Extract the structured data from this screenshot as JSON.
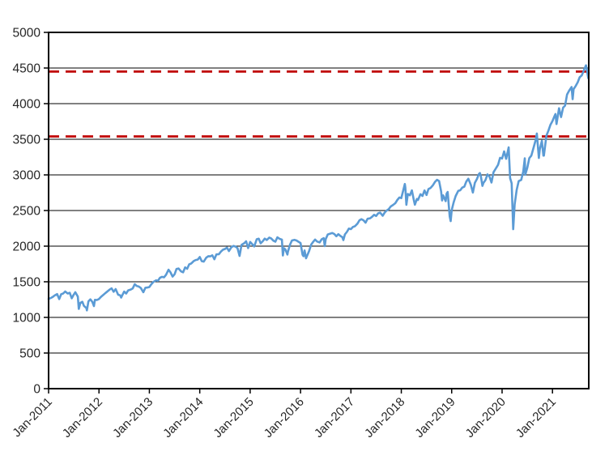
{
  "chart_data": {
    "type": "line",
    "title": "",
    "background": "#ffffff",
    "grid": true,
    "legend": "none",
    "colors": {
      "series": "#5B9BD5",
      "reference": "#C00000",
      "gridline": "#000000",
      "border": "#000000",
      "tick_text": "#262626"
    },
    "y_axis": {
      "min": 0,
      "max": 5000,
      "step": 500,
      "ticks": [
        0,
        500,
        1000,
        1500,
        2000,
        2500,
        3000,
        3500,
        4000,
        4500,
        5000
      ]
    },
    "x_axis": {
      "min": 2011.0,
      "max": 2021.72,
      "label_rotation": -45,
      "ticks": [
        {
          "t": 2011,
          "label": "Jan-2011"
        },
        {
          "t": 2012,
          "label": "Jan-2012"
        },
        {
          "t": 2013,
          "label": "Jan-2013"
        },
        {
          "t": 2014,
          "label": "Jan-2014"
        },
        {
          "t": 2015,
          "label": "Jan-2015"
        },
        {
          "t": 2016,
          "label": "Jan-2016"
        },
        {
          "t": 2017,
          "label": "Jan-2017"
        },
        {
          "t": 2018,
          "label": "Jan-2018"
        },
        {
          "t": 2019,
          "label": "Jan-2019"
        },
        {
          "t": 2020,
          "label": "Jan-2020"
        },
        {
          "t": 2021,
          "label": "Jan-2021"
        }
      ]
    },
    "reference_lines": [
      {
        "value": 4450,
        "style": "dashed"
      },
      {
        "value": 3540,
        "style": "dashed"
      }
    ],
    "series": [
      {
        "points": [
          [
            2011.0,
            1258
          ],
          [
            2011.04,
            1272
          ],
          [
            2011.08,
            1286
          ],
          [
            2011.12,
            1308
          ],
          [
            2011.17,
            1327
          ],
          [
            2011.21,
            1257
          ],
          [
            2011.25,
            1326
          ],
          [
            2011.29,
            1335
          ],
          [
            2011.33,
            1364
          ],
          [
            2011.38,
            1335
          ],
          [
            2011.42,
            1345
          ],
          [
            2011.46,
            1268
          ],
          [
            2011.5,
            1321
          ],
          [
            2011.53,
            1353
          ],
          [
            2011.58,
            1292
          ],
          [
            2011.6,
            1119
          ],
          [
            2011.63,
            1205
          ],
          [
            2011.67,
            1219
          ],
          [
            2011.7,
            1162
          ],
          [
            2011.75,
            1131
          ],
          [
            2011.76,
            1099
          ],
          [
            2011.79,
            1225
          ],
          [
            2011.83,
            1253
          ],
          [
            2011.87,
            1216
          ],
          [
            2011.9,
            1159
          ],
          [
            2011.92,
            1247
          ],
          [
            2011.96,
            1244
          ],
          [
            2012.0,
            1258
          ],
          [
            2012.04,
            1289
          ],
          [
            2012.08,
            1312
          ],
          [
            2012.13,
            1343
          ],
          [
            2012.17,
            1366
          ],
          [
            2012.21,
            1390
          ],
          [
            2012.25,
            1408
          ],
          [
            2012.29,
            1359
          ],
          [
            2012.33,
            1398
          ],
          [
            2012.38,
            1318
          ],
          [
            2012.42,
            1310
          ],
          [
            2012.44,
            1278
          ],
          [
            2012.5,
            1362
          ],
          [
            2012.54,
            1335
          ],
          [
            2012.58,
            1379
          ],
          [
            2012.63,
            1391
          ],
          [
            2012.67,
            1407
          ],
          [
            2012.71,
            1466
          ],
          [
            2012.75,
            1441
          ],
          [
            2012.79,
            1433
          ],
          [
            2012.83,
            1412
          ],
          [
            2012.88,
            1353
          ],
          [
            2012.92,
            1416
          ],
          [
            2012.96,
            1419
          ],
          [
            2013.0,
            1426
          ],
          [
            2013.04,
            1466
          ],
          [
            2013.08,
            1498
          ],
          [
            2013.13,
            1519
          ],
          [
            2013.17,
            1515
          ],
          [
            2013.21,
            1556
          ],
          [
            2013.25,
            1569
          ],
          [
            2013.29,
            1562
          ],
          [
            2013.33,
            1598
          ],
          [
            2013.38,
            1669
          ],
          [
            2013.42,
            1631
          ],
          [
            2013.46,
            1573
          ],
          [
            2013.5,
            1606
          ],
          [
            2013.54,
            1681
          ],
          [
            2013.58,
            1686
          ],
          [
            2013.63,
            1646
          ],
          [
            2013.67,
            1633
          ],
          [
            2013.71,
            1702
          ],
          [
            2013.75,
            1682
          ],
          [
            2013.79,
            1744
          ],
          [
            2013.83,
            1757
          ],
          [
            2013.88,
            1791
          ],
          [
            2013.92,
            1806
          ],
          [
            2013.96,
            1811
          ],
          [
            2014.0,
            1848
          ],
          [
            2014.04,
            1790
          ],
          [
            2014.08,
            1783
          ],
          [
            2014.13,
            1839
          ],
          [
            2014.17,
            1859
          ],
          [
            2014.21,
            1857
          ],
          [
            2014.25,
            1872
          ],
          [
            2014.29,
            1816
          ],
          [
            2014.33,
            1884
          ],
          [
            2014.38,
            1888
          ],
          [
            2014.42,
            1924
          ],
          [
            2014.46,
            1950
          ],
          [
            2014.5,
            1960
          ],
          [
            2014.54,
            1978
          ],
          [
            2014.58,
            1931
          ],
          [
            2014.63,
            1988
          ],
          [
            2014.67,
            2003
          ],
          [
            2014.71,
            1994
          ],
          [
            2014.75,
            1972
          ],
          [
            2014.79,
            1862
          ],
          [
            2014.83,
            2018
          ],
          [
            2014.88,
            2040
          ],
          [
            2014.92,
            2068
          ],
          [
            2014.96,
            1973
          ],
          [
            2015.0,
            2059
          ],
          [
            2015.04,
            2028
          ],
          [
            2015.08,
            1995
          ],
          [
            2015.13,
            2097
          ],
          [
            2015.17,
            2105
          ],
          [
            2015.21,
            2040
          ],
          [
            2015.25,
            2068
          ],
          [
            2015.29,
            2106
          ],
          [
            2015.33,
            2086
          ],
          [
            2015.38,
            2121
          ],
          [
            2015.42,
            2107
          ],
          [
            2015.46,
            2077
          ],
          [
            2015.5,
            2063
          ],
          [
            2015.54,
            2124
          ],
          [
            2015.58,
            2104
          ],
          [
            2015.63,
            2091
          ],
          [
            2015.65,
            1868
          ],
          [
            2015.67,
            1972
          ],
          [
            2015.7,
            1953
          ],
          [
            2015.74,
            1882
          ],
          [
            2015.75,
            1920
          ],
          [
            2015.79,
            2018
          ],
          [
            2015.83,
            2079
          ],
          [
            2015.88,
            2089
          ],
          [
            2015.92,
            2080
          ],
          [
            2015.96,
            2061
          ],
          [
            2016.0,
            2044
          ],
          [
            2016.04,
            1880
          ],
          [
            2016.06,
            1859
          ],
          [
            2016.08,
            1940
          ],
          [
            2016.11,
            1829
          ],
          [
            2016.17,
            1932
          ],
          [
            2016.21,
            2022
          ],
          [
            2016.25,
            2060
          ],
          [
            2016.29,
            2092
          ],
          [
            2016.33,
            2065
          ],
          [
            2016.38,
            2052
          ],
          [
            2016.42,
            2097
          ],
          [
            2016.46,
            2113
          ],
          [
            2016.48,
            2001
          ],
          [
            2016.5,
            2099
          ],
          [
            2016.54,
            2164
          ],
          [
            2016.58,
            2174
          ],
          [
            2016.63,
            2184
          ],
          [
            2016.67,
            2171
          ],
          [
            2016.71,
            2139
          ],
          [
            2016.75,
            2168
          ],
          [
            2016.79,
            2143
          ],
          [
            2016.83,
            2126
          ],
          [
            2016.85,
            2085
          ],
          [
            2016.88,
            2165
          ],
          [
            2016.92,
            2199
          ],
          [
            2016.96,
            2247
          ],
          [
            2017.0,
            2239
          ],
          [
            2017.04,
            2269
          ],
          [
            2017.08,
            2279
          ],
          [
            2017.13,
            2316
          ],
          [
            2017.17,
            2364
          ],
          [
            2017.21,
            2378
          ],
          [
            2017.25,
            2363
          ],
          [
            2017.29,
            2329
          ],
          [
            2017.33,
            2384
          ],
          [
            2017.38,
            2391
          ],
          [
            2017.42,
            2412
          ],
          [
            2017.46,
            2440
          ],
          [
            2017.5,
            2423
          ],
          [
            2017.54,
            2460
          ],
          [
            2017.58,
            2470
          ],
          [
            2017.63,
            2426
          ],
          [
            2017.67,
            2472
          ],
          [
            2017.71,
            2500
          ],
          [
            2017.75,
            2519
          ],
          [
            2017.79,
            2557
          ],
          [
            2017.83,
            2575
          ],
          [
            2017.88,
            2602
          ],
          [
            2017.92,
            2648
          ],
          [
            2017.96,
            2683
          ],
          [
            2018.0,
            2674
          ],
          [
            2018.04,
            2786
          ],
          [
            2018.07,
            2873
          ],
          [
            2018.08,
            2824
          ],
          [
            2018.1,
            2581
          ],
          [
            2018.13,
            2732
          ],
          [
            2018.17,
            2714
          ],
          [
            2018.21,
            2783
          ],
          [
            2018.25,
            2641
          ],
          [
            2018.27,
            2582
          ],
          [
            2018.31,
            2663
          ],
          [
            2018.33,
            2648
          ],
          [
            2018.38,
            2728
          ],
          [
            2018.42,
            2705
          ],
          [
            2018.46,
            2782
          ],
          [
            2018.5,
            2718
          ],
          [
            2018.54,
            2802
          ],
          [
            2018.58,
            2816
          ],
          [
            2018.63,
            2857
          ],
          [
            2018.67,
            2902
          ],
          [
            2018.71,
            2931
          ],
          [
            2018.75,
            2914
          ],
          [
            2018.79,
            2768
          ],
          [
            2018.81,
            2641
          ],
          [
            2018.83,
            2712
          ],
          [
            2018.88,
            2632
          ],
          [
            2018.9,
            2737
          ],
          [
            2018.92,
            2760
          ],
          [
            2018.96,
            2416
          ],
          [
            2018.98,
            2351
          ],
          [
            2019.0,
            2507
          ],
          [
            2019.04,
            2616
          ],
          [
            2019.08,
            2704
          ],
          [
            2019.13,
            2775
          ],
          [
            2019.17,
            2784
          ],
          [
            2019.21,
            2822
          ],
          [
            2019.25,
            2834
          ],
          [
            2019.29,
            2907
          ],
          [
            2019.33,
            2946
          ],
          [
            2019.38,
            2860
          ],
          [
            2019.42,
            2752
          ],
          [
            2019.46,
            2890
          ],
          [
            2019.5,
            2942
          ],
          [
            2019.54,
            3014
          ],
          [
            2019.56,
            3026
          ],
          [
            2019.58,
            2980
          ],
          [
            2019.61,
            2845
          ],
          [
            2019.63,
            2889
          ],
          [
            2019.67,
            2926
          ],
          [
            2019.71,
            3007
          ],
          [
            2019.75,
            2977
          ],
          [
            2019.79,
            2893
          ],
          [
            2019.83,
            3038
          ],
          [
            2019.88,
            3094
          ],
          [
            2019.92,
            3141
          ],
          [
            2019.96,
            3240
          ],
          [
            2020.0,
            3231
          ],
          [
            2020.04,
            3330
          ],
          [
            2020.08,
            3226
          ],
          [
            2020.13,
            3386
          ],
          [
            2020.16,
            2954
          ],
          [
            2020.19,
            2882
          ],
          [
            2020.22,
            2237
          ],
          [
            2020.25,
            2585
          ],
          [
            2020.29,
            2790
          ],
          [
            2020.33,
            2912
          ],
          [
            2020.38,
            2930
          ],
          [
            2020.42,
            3044
          ],
          [
            2020.45,
            3232
          ],
          [
            2020.46,
            3002
          ],
          [
            2020.5,
            3100
          ],
          [
            2020.54,
            3235
          ],
          [
            2020.58,
            3271
          ],
          [
            2020.63,
            3397
          ],
          [
            2020.67,
            3500
          ],
          [
            2020.69,
            3581
          ],
          [
            2020.73,
            3237
          ],
          [
            2020.75,
            3363
          ],
          [
            2020.79,
            3477
          ],
          [
            2020.82,
            3271
          ],
          [
            2020.83,
            3270
          ],
          [
            2020.88,
            3550
          ],
          [
            2020.92,
            3622
          ],
          [
            2020.96,
            3703
          ],
          [
            2021.0,
            3756
          ],
          [
            2021.04,
            3825
          ],
          [
            2021.06,
            3855
          ],
          [
            2021.08,
            3714
          ],
          [
            2021.13,
            3935
          ],
          [
            2021.17,
            3811
          ],
          [
            2021.21,
            3943
          ],
          [
            2021.25,
            3973
          ],
          [
            2021.29,
            4128
          ],
          [
            2021.33,
            4181
          ],
          [
            2021.38,
            4233
          ],
          [
            2021.4,
            4063
          ],
          [
            2021.42,
            4204
          ],
          [
            2021.46,
            4247
          ],
          [
            2021.5,
            4298
          ],
          [
            2021.54,
            4370
          ],
          [
            2021.58,
            4395
          ],
          [
            2021.63,
            4480
          ],
          [
            2021.665,
            4537
          ],
          [
            2021.69,
            4443
          ],
          [
            2021.71,
            4358
          ],
          [
            2021.72,
            4433
          ]
        ]
      }
    ]
  }
}
